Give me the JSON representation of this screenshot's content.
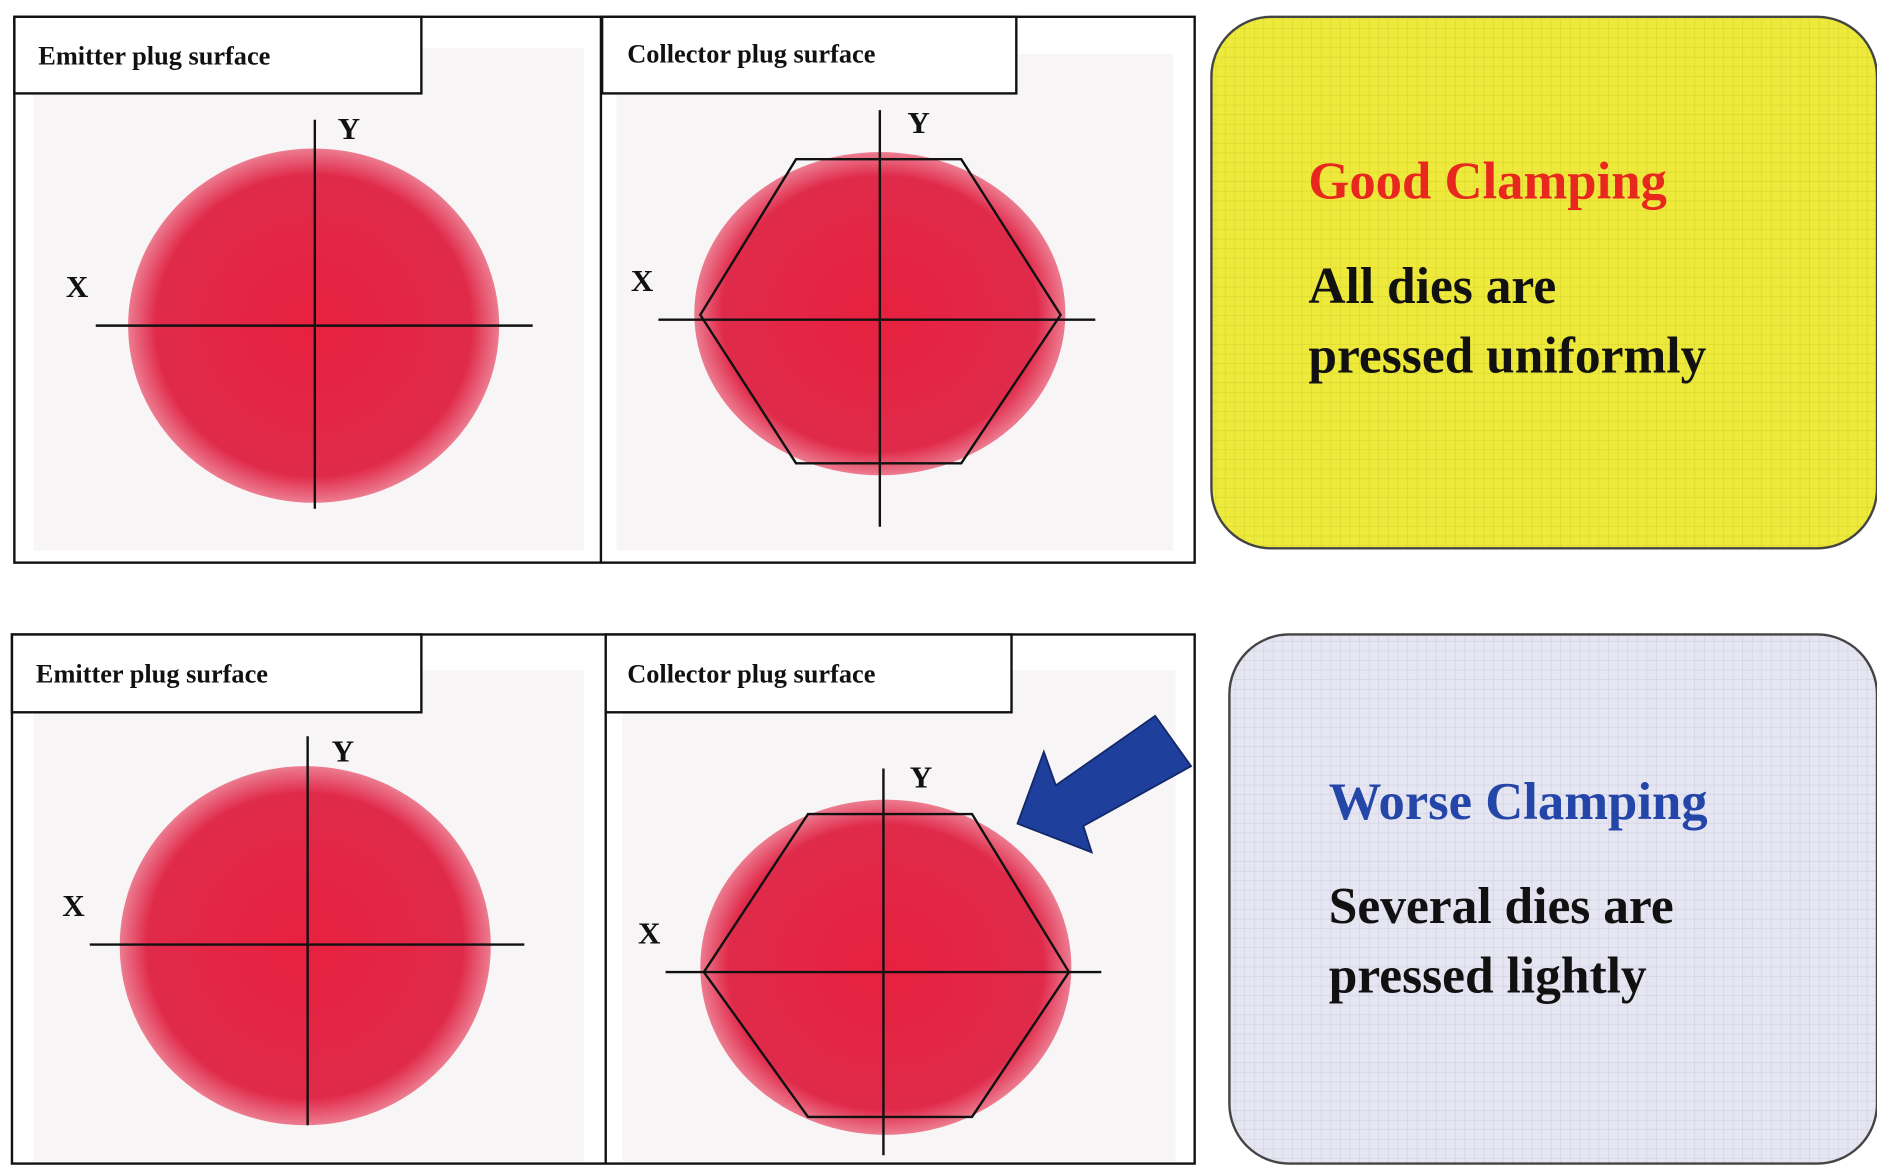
{
  "panels": [
    {
      "label": "Emitter plug surface",
      "x_label": "X",
      "y_label": "Y"
    },
    {
      "label": "Collector plug surface",
      "x_label": "X",
      "y_label": "Y"
    },
    {
      "label": "Emitter plug surface",
      "x_label": "X",
      "y_label": "Y"
    },
    {
      "label": "Collector plug surface",
      "x_label": "X",
      "y_label": "Y"
    }
  ],
  "callouts": [
    {
      "title": "Good Clamping",
      "lines": [
        "All dies are",
        "pressed uniformly"
      ]
    },
    {
      "title": "Worse Clamping",
      "lines": [
        "Several dies are",
        "pressed lightly"
      ]
    }
  ]
}
